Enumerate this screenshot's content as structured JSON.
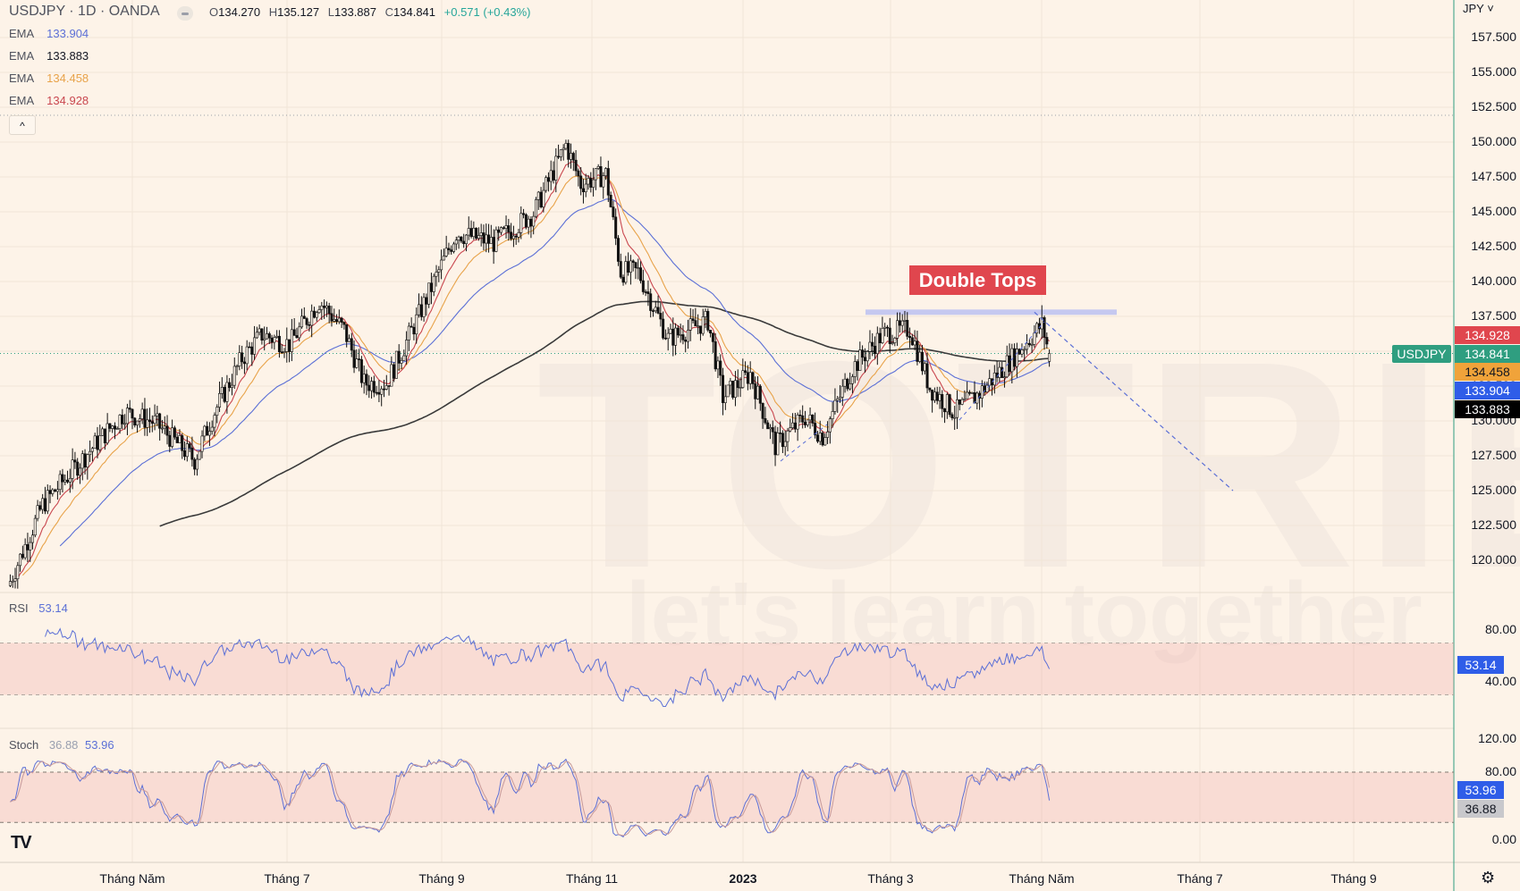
{
  "header": {
    "symbol": "USDJPY",
    "separator": "·",
    "interval": "1D",
    "broker": "OANDA",
    "title": "USDJPY · 1D · OANDA",
    "open_label": "O",
    "open": "134.270",
    "high_label": "H",
    "high": "135.127",
    "low_label": "L",
    "low": "133.887",
    "close_label": "C",
    "close": "134.841",
    "change": "+0.571 (+0.43%)"
  },
  "indicators": [
    {
      "label": "EMA",
      "value": "133.904",
      "color": "#5b6fd6"
    },
    {
      "label": "EMA",
      "value": "133.883",
      "color": "#131722"
    },
    {
      "label": "EMA",
      "value": "134.458",
      "color": "#e8a34a"
    },
    {
      "label": "EMA",
      "value": "134.928",
      "color": "#c9474f"
    }
  ],
  "collapse_label": "^",
  "currency": "JPY",
  "annotation": {
    "text": "Double Tops",
    "bg": "#e0464e",
    "resistance_color": "#c5c8f0"
  },
  "watermark": {
    "brand": "TOTRIEU",
    "tagline": "let's learn together"
  },
  "price_tags": [
    {
      "value": "134.928",
      "color": "#e0464e",
      "text_color": "#ffffff"
    },
    {
      "value": "134.841",
      "color": "#2f9e80",
      "text_color": "#ffffff",
      "symbol": "USDJPY"
    },
    {
      "value": "134.458",
      "color": "#f0a33a",
      "text_color": "#131722"
    },
    {
      "value": "133.904",
      "color": "#2f5de8",
      "text_color": "#ffffff"
    },
    {
      "value": "133.883",
      "color": "#000000",
      "text_color": "#ffffff"
    }
  ],
  "rsi": {
    "label": "RSI",
    "value": "53.14",
    "color": "#5b6fd6",
    "ticks": [
      "80.00",
      "40.00"
    ]
  },
  "stoch": {
    "label": "Stoch",
    "k": "36.88",
    "d": "53.96",
    "ticks": [
      "120.00",
      "80.00",
      "0.00"
    ]
  },
  "logo": "TV",
  "chart_data": {
    "type": "candlestick",
    "title": "USDJPY · 1D · OANDA",
    "yaxis_ticks": [
      "157.500",
      "155.000",
      "152.500",
      "150.000",
      "147.500",
      "145.000",
      "142.500",
      "140.000",
      "137.500",
      "135.000",
      "132.500",
      "130.000",
      "127.500",
      "125.000",
      "122.500",
      "120.000"
    ],
    "ylim": [
      117.5,
      158.5
    ],
    "xaxis_ticks": [
      "Tháng Năm",
      "Tháng 7",
      "Tháng 9",
      "Tháng 11",
      "2023",
      "Tháng 3",
      "Tháng Năm",
      "Tháng 7",
      "Tháng 9"
    ],
    "close_path": [
      [
        "2022-03-13",
        118.5
      ],
      [
        "2022-03-26",
        124.0
      ],
      [
        "2022-04-19",
        128.9
      ],
      [
        "2022-04-28",
        130.6
      ],
      [
        "2022-05-10",
        129.9
      ],
      [
        "2022-05-26",
        127.2
      ],
      [
        "2022-06-02",
        130.3
      ],
      [
        "2022-06-14",
        134.5
      ],
      [
        "2022-06-22",
        136.2
      ],
      [
        "2022-07-03",
        135.5
      ],
      [
        "2022-07-15",
        138.6
      ],
      [
        "2022-07-25",
        136.5
      ],
      [
        "2022-08-02",
        132.7
      ],
      [
        "2022-08-11",
        132.7
      ],
      [
        "2022-08-23",
        137.2
      ],
      [
        "2022-09-08",
        143.5
      ],
      [
        "2022-09-23",
        142.8
      ],
      [
        "2022-10-09",
        144.9
      ],
      [
        "2022-10-22",
        149.8
      ],
      [
        "2022-10-28",
        147.0
      ],
      [
        "2022-11-07",
        147.7
      ],
      [
        "2022-11-13",
        140.7
      ],
      [
        "2022-11-20",
        140.7
      ],
      [
        "2022-12-02",
        135.9
      ],
      [
        "2022-12-18",
        137.2
      ],
      [
        "2022-12-24",
        131.7
      ],
      [
        "2023-01-04",
        133.4
      ],
      [
        "2023-01-14",
        128.2
      ],
      [
        "2023-01-26",
        130.3
      ],
      [
        "2023-02-02",
        128.9
      ],
      [
        "2023-02-14",
        133.8
      ],
      [
        "2023-02-26",
        136.2
      ],
      [
        "2023-03-09",
        136.6
      ],
      [
        "2023-03-17",
        132.4
      ],
      [
        "2023-03-27",
        130.6
      ],
      [
        "2023-04-06",
        132.0
      ],
      [
        "2023-04-17",
        134.1
      ],
      [
        "2023-05-01",
        136.9
      ],
      [
        "2023-05-04",
        134.841
      ]
    ],
    "last": {
      "open": 134.27,
      "high": 135.127,
      "low": 133.887,
      "close": 134.841
    },
    "ema_values": [
      133.904,
      133.883,
      134.458,
      134.928
    ],
    "resistance": 137.8,
    "projection_target": 125.0,
    "rsi_band": [
      30,
      70
    ],
    "stoch_band": [
      20,
      80
    ],
    "grid": true
  }
}
